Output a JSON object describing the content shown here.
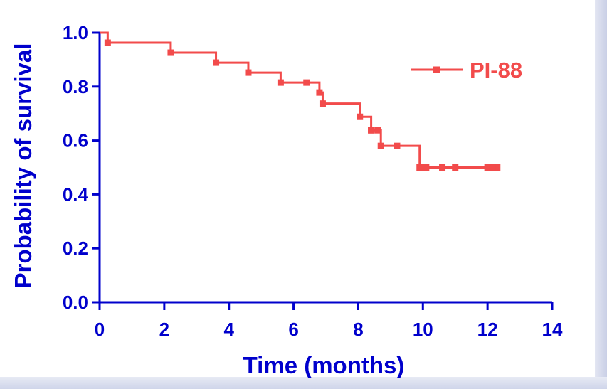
{
  "chart_data": {
    "type": "line",
    "title": "",
    "xlabel": "Time (months)",
    "ylabel": "Probability of survival",
    "xlim": [
      0,
      14
    ],
    "ylim": [
      0,
      1.0
    ],
    "x_ticks": [
      "0",
      "2",
      "4",
      "6",
      "8",
      "10",
      "12",
      "14"
    ],
    "x_tick_values": [
      0,
      2,
      4,
      6,
      8,
      10,
      12,
      14
    ],
    "y_ticks": [
      "0.0",
      "0.2",
      "0.4",
      "0.6",
      "0.8",
      "1.0"
    ],
    "y_tick_values": [
      0,
      0.2,
      0.4,
      0.6,
      0.8,
      1.0
    ],
    "grid": false,
    "legend_position": "top-right",
    "series": [
      {
        "name": "PI-88",
        "color": "#f24b4b",
        "step": true,
        "x": [
          0,
          0.25,
          2.2,
          3.6,
          4.6,
          5.6,
          6.8,
          6.9,
          8.05,
          8.4,
          8.7,
          9.9,
          12.3
        ],
        "values": [
          1.0,
          0.963,
          0.926,
          0.889,
          0.852,
          0.815,
          0.778,
          0.737,
          0.688,
          0.638,
          0.58,
          0.5,
          0.5
        ]
      }
    ],
    "censored": [
      {
        "x": 6.4,
        "y": 0.815
      },
      {
        "x": 8.4,
        "y": 0.638
      },
      {
        "x": 8.6,
        "y": 0.638
      },
      {
        "x": 9.2,
        "y": 0.58
      },
      {
        "x": 10.1,
        "y": 0.5
      },
      {
        "x": 10.6,
        "y": 0.5
      },
      {
        "x": 11.0,
        "y": 0.5
      },
      {
        "x": 12.0,
        "y": 0.5
      },
      {
        "x": 12.15,
        "y": 0.5
      }
    ]
  }
}
